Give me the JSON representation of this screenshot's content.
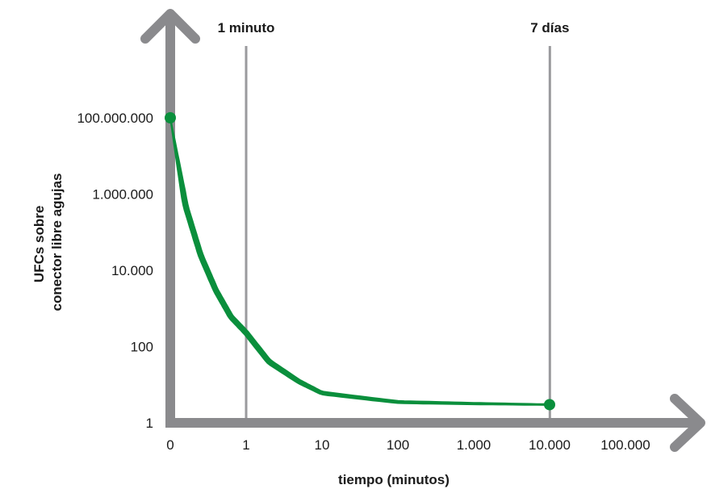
{
  "chart_data": {
    "type": "line",
    "xlabel": "tiempo (minutos)",
    "ylabel_lines": [
      "UFCs sobre",
      "conector libre agujas"
    ],
    "x_tick_labels": [
      "0",
      "1",
      "10",
      "100",
      "1.000",
      "10.000",
      "100.000"
    ],
    "y_tick_labels": [
      "1",
      "100",
      "10.000",
      "1.000.000",
      "100.000.000"
    ],
    "reference_lines": [
      {
        "label": "1 minuto",
        "x": 1
      },
      {
        "label": "7 días",
        "x": 10080
      }
    ],
    "series": [
      {
        "color": "#0a8f3c",
        "x": [
          0,
          0.2,
          0.4,
          0.6,
          0.8,
          1,
          2,
          5,
          10,
          100,
          1000,
          10000
        ],
        "y": [
          100000000,
          500000,
          25000,
          3000,
          600,
          230,
          40,
          12,
          6,
          3.5,
          3.2,
          3
        ]
      }
    ],
    "markers": [
      {
        "x": 0,
        "y": 100000000
      },
      {
        "x": 10000,
        "y": 3
      }
    ],
    "scale": "log",
    "grid": false,
    "axis_color": "#8a8a8d",
    "ref_line_color": "#9a9a9d"
  }
}
